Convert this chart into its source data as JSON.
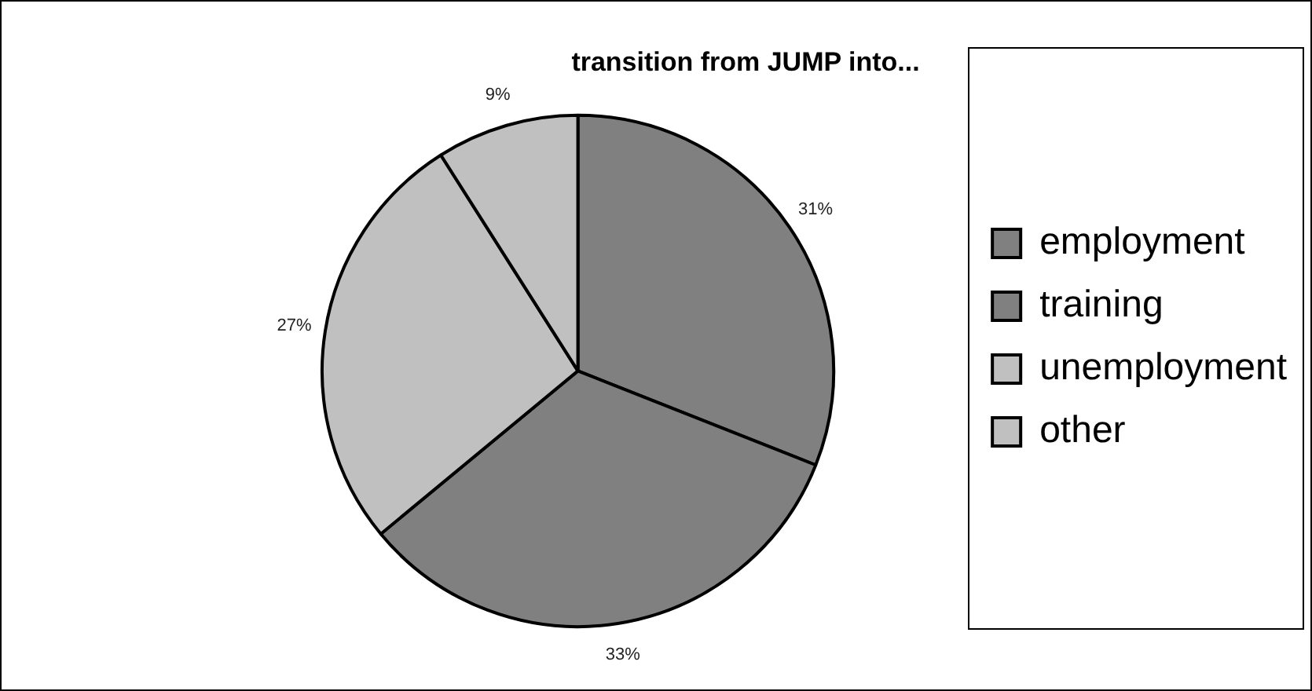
{
  "chart_data": {
    "type": "pie",
    "title": "transition from JUMP into...",
    "categories": [
      "employment",
      "training",
      "unemployment",
      "other"
    ],
    "values": [
      31,
      33,
      27,
      9
    ],
    "colors": [
      "#808080",
      "#808080",
      "#c0c0c0",
      "#c0c0c0"
    ],
    "value_labels": [
      "31%",
      "33%",
      "27%",
      "9%"
    ],
    "legend": "right"
  }
}
